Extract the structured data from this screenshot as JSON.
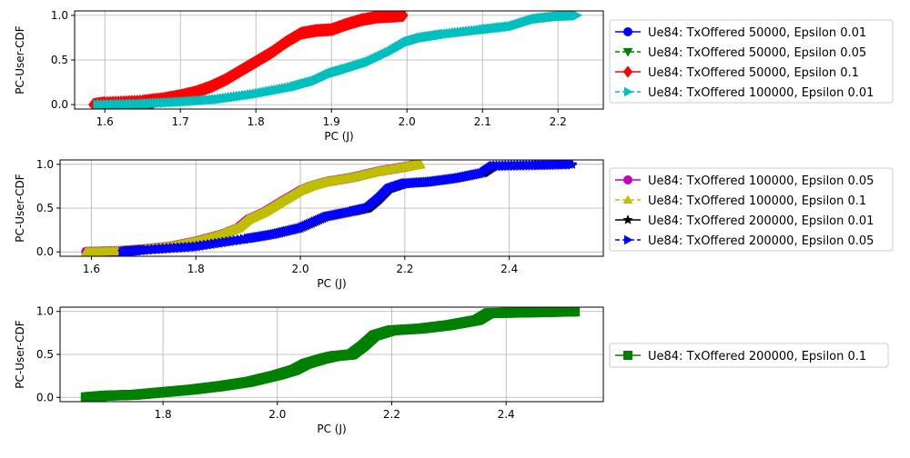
{
  "chart_data": [
    {
      "type": "line",
      "xlabel": "PC (J)",
      "ylabel": "PC-User-CDF",
      "xlim": [
        1.56,
        2.26
      ],
      "ylim": [
        -0.05,
        1.05
      ],
      "xticks": [
        1.6,
        1.7,
        1.8,
        1.9,
        2.0,
        2.1,
        2.2
      ],
      "xtick_labels": [
        "1.6",
        "1.7",
        "1.8",
        "1.9",
        "2.0",
        "2.1",
        "2.2"
      ],
      "yticks": [
        0.0,
        0.5,
        1.0
      ],
      "ytick_labels": [
        "0.0",
        "0.5",
        "1.0"
      ],
      "grid": true,
      "legend_position": "right",
      "series": [
        {
          "name": "Ue84: TxOffered 50000, Epsilon 0.01",
          "color": "#0000ff",
          "linestyle": "solid",
          "marker": "circle",
          "x": [
            1.59,
            1.62,
            1.66
          ],
          "y": [
            0.0,
            0.0,
            0.0
          ]
        },
        {
          "name": "Ue84: TxOffered 50000, Epsilon 0.05",
          "color": "#008000",
          "linestyle": "dashed",
          "marker": "triangle-down",
          "x": [
            1.59,
            1.62,
            1.66
          ],
          "y": [
            0.0,
            0.0,
            0.0
          ]
        },
        {
          "name": "Ue84: TxOffered 50000, Epsilon 0.1",
          "color": "#ff0000",
          "linestyle": "solid",
          "marker": "diamond",
          "x": [
            1.585,
            1.6,
            1.65,
            1.68,
            1.7,
            1.72,
            1.74,
            1.76,
            1.78,
            1.8,
            1.82,
            1.84,
            1.86,
            1.88,
            1.9,
            1.92,
            1.94,
            1.96,
            1.98,
            1.995
          ],
          "y": [
            0.0,
            0.02,
            0.04,
            0.07,
            0.1,
            0.14,
            0.2,
            0.28,
            0.38,
            0.48,
            0.58,
            0.7,
            0.8,
            0.83,
            0.84,
            0.9,
            0.95,
            0.98,
            0.99,
            1.0
          ]
        },
        {
          "name": "Ue84: TxOffered 100000, Epsilon 0.01",
          "color": "#00bfbf",
          "linestyle": "dashed",
          "marker": "triangle-right",
          "x": [
            1.59,
            1.65,
            1.7,
            1.75,
            1.8,
            1.85,
            1.88,
            1.9,
            1.92,
            1.95,
            1.98,
            2.0,
            2.02,
            2.05,
            2.1,
            2.14,
            2.17,
            2.2,
            2.225
          ],
          "y": [
            0.0,
            0.01,
            0.03,
            0.06,
            0.12,
            0.2,
            0.27,
            0.35,
            0.4,
            0.48,
            0.6,
            0.7,
            0.75,
            0.79,
            0.84,
            0.88,
            0.96,
            0.99,
            1.0
          ]
        }
      ]
    },
    {
      "type": "line",
      "xlabel": "PC (J)",
      "ylabel": "PC-User-CDF",
      "xlim": [
        1.54,
        2.58
      ],
      "ylim": [
        -0.05,
        1.05
      ],
      "xticks": [
        1.6,
        1.8,
        2.0,
        2.2,
        2.4
      ],
      "xtick_labels": [
        "1.6",
        "1.8",
        "2.0",
        "2.2",
        "2.4"
      ],
      "yticks": [
        0.0,
        0.5,
        1.0
      ],
      "ytick_labels": [
        "0.0",
        "0.5",
        "1.0"
      ],
      "grid": true,
      "legend_position": "right",
      "series": [
        {
          "name": "Ue84: TxOffered 100000, Epsilon 0.05",
          "color": "#bf00bf",
          "linestyle": "solid",
          "marker": "hexagon",
          "x": [
            1.59,
            1.65,
            1.7,
            1.75,
            1.8,
            1.85,
            1.88,
            1.9,
            1.93,
            1.96,
            2.0,
            2.02,
            2.05,
            2.1,
            2.15,
            2.2,
            2.225
          ],
          "y": [
            0.0,
            0.01,
            0.03,
            0.06,
            0.12,
            0.2,
            0.27,
            0.37,
            0.45,
            0.56,
            0.7,
            0.75,
            0.8,
            0.85,
            0.92,
            0.97,
            1.0
          ]
        },
        {
          "name": "Ue84: TxOffered 100000, Epsilon 0.1",
          "color": "#bfbf00",
          "linestyle": "dashed",
          "marker": "triangle-up",
          "x": [
            1.59,
            1.65,
            1.7,
            1.75,
            1.8,
            1.85,
            1.88,
            1.9,
            1.93,
            1.96,
            2.0,
            2.02,
            2.05,
            2.1,
            2.15,
            2.2,
            2.23
          ],
          "y": [
            0.0,
            0.01,
            0.03,
            0.06,
            0.12,
            0.2,
            0.27,
            0.37,
            0.45,
            0.56,
            0.7,
            0.75,
            0.8,
            0.85,
            0.92,
            0.97,
            1.0
          ]
        },
        {
          "name": "Ue84: TxOffered 200000, Epsilon 0.01",
          "color": "#000000",
          "linestyle": "solid",
          "marker": "star",
          "x": [
            1.66,
            1.7,
            1.8,
            1.9,
            1.95,
            2.0,
            2.05,
            2.1,
            2.13,
            2.15,
            2.17,
            2.2,
            2.25,
            2.3,
            2.35,
            2.37,
            2.45,
            2.52
          ],
          "y": [
            0.0,
            0.02,
            0.06,
            0.15,
            0.2,
            0.27,
            0.4,
            0.46,
            0.5,
            0.6,
            0.72,
            0.78,
            0.8,
            0.84,
            0.9,
            0.98,
            0.99,
            1.0
          ]
        },
        {
          "name": "Ue84: TxOffered 200000, Epsilon 0.05",
          "color": "#0000ff",
          "linestyle": "dashed",
          "marker": "triangle-right",
          "x": [
            1.66,
            1.7,
            1.8,
            1.9,
            1.95,
            2.0,
            2.05,
            2.1,
            2.13,
            2.15,
            2.17,
            2.2,
            2.25,
            2.3,
            2.35,
            2.37,
            2.45,
            2.52
          ],
          "y": [
            0.0,
            0.02,
            0.06,
            0.15,
            0.2,
            0.27,
            0.4,
            0.46,
            0.5,
            0.6,
            0.72,
            0.78,
            0.8,
            0.84,
            0.9,
            0.98,
            0.99,
            1.0
          ]
        }
      ]
    },
    {
      "type": "line",
      "xlabel": "PC (J)",
      "ylabel": "PC-User-CDF",
      "xlim": [
        1.62,
        2.57
      ],
      "ylim": [
        -0.05,
        1.05
      ],
      "xticks": [
        1.8,
        2.0,
        2.2,
        2.4
      ],
      "xtick_labels": [
        "1.8",
        "2.0",
        "2.2",
        "2.4"
      ],
      "yticks": [
        0.0,
        0.5,
        1.0
      ],
      "ytick_labels": [
        "0.0",
        "0.5",
        "1.0"
      ],
      "grid": true,
      "legend_position": "right",
      "series": [
        {
          "name": "Ue84: TxOffered 200000, Epsilon 0.1",
          "color": "#008000",
          "linestyle": "solid",
          "marker": "square",
          "x": [
            1.665,
            1.7,
            1.75,
            1.8,
            1.85,
            1.9,
            1.95,
            2.0,
            2.03,
            2.05,
            2.08,
            2.1,
            2.13,
            2.15,
            2.17,
            2.2,
            2.25,
            2.3,
            2.35,
            2.37,
            2.45,
            2.52
          ],
          "y": [
            0.0,
            0.02,
            0.03,
            0.06,
            0.09,
            0.13,
            0.18,
            0.26,
            0.32,
            0.39,
            0.45,
            0.48,
            0.5,
            0.6,
            0.72,
            0.78,
            0.8,
            0.84,
            0.9,
            0.98,
            0.99,
            1.0
          ]
        }
      ]
    }
  ]
}
